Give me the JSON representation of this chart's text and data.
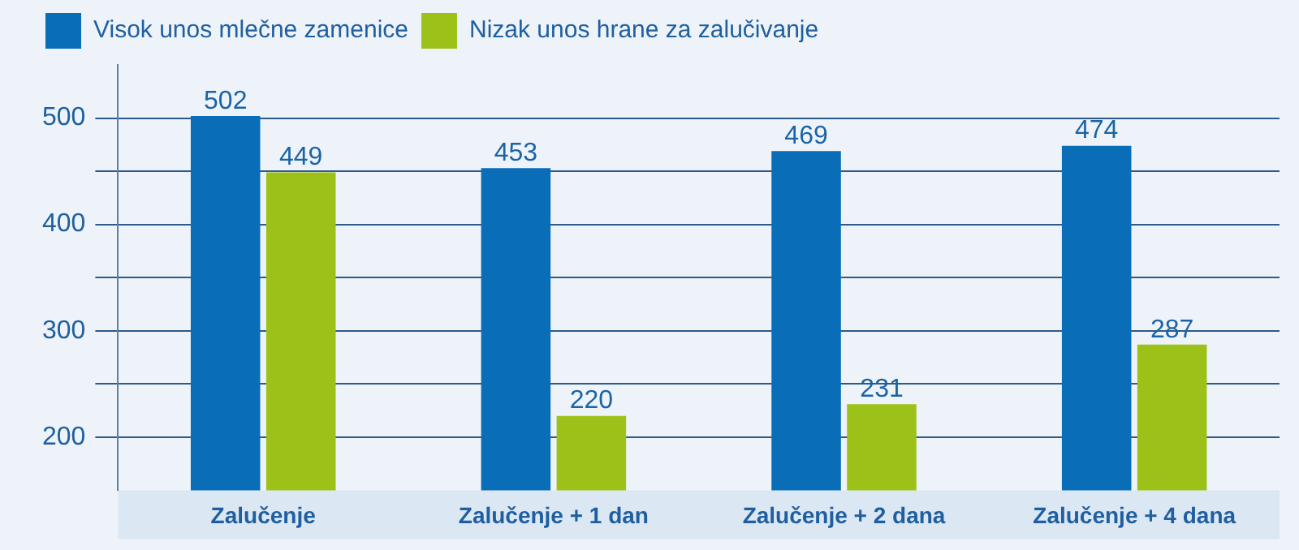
{
  "chart_data": {
    "type": "bar",
    "categories": [
      "Zalučenje",
      "Zalučenje + 1 dan",
      "Zalučenje + 2 dana",
      "Zalučenje + 4 dana"
    ],
    "series": [
      {
        "name": "Visok unos mlečne zamenice",
        "color": "#0a6db8",
        "values": [
          502,
          453,
          469,
          474
        ]
      },
      {
        "name": "Nizak unos hrane za zalučivanje",
        "color": "#9cc21a",
        "values": [
          449,
          220,
          231,
          287
        ]
      }
    ],
    "ylim": [
      150,
      550
    ],
    "yticks": [
      200,
      {
        "value": 250,
        "label": null
      },
      300,
      {
        "value": 350,
        "label": null
      },
      400,
      {
        "value": 450,
        "label": null
      },
      500
    ],
    "grid": "y",
    "legend": "top left",
    "data_labels": true
  }
}
